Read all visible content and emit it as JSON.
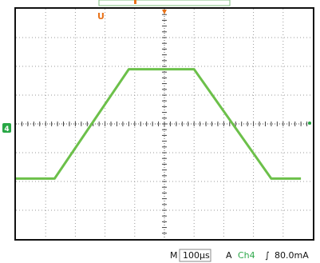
{
  "trigger_marker": {
    "label": "U",
    "color": "#e8731a"
  },
  "channel_marker": {
    "label": "4",
    "color": "#28a745"
  },
  "trace": {
    "color": "#6cc04a",
    "points": [
      [
        0.0,
        -1.9
      ],
      [
        1.3,
        -1.9
      ],
      [
        3.8,
        1.9
      ],
      [
        6.0,
        1.9
      ],
      [
        8.6,
        -1.9
      ],
      [
        9.6,
        -1.9
      ]
    ]
  },
  "status_bar": {
    "mode": "M",
    "timebase": "100µs",
    "trigger_type": "A",
    "trigger_channel": "Ch4",
    "trigger_slope_symbol": "∫",
    "trigger_level": "80.0mA",
    "channel_color": "#2ea84a"
  }
}
